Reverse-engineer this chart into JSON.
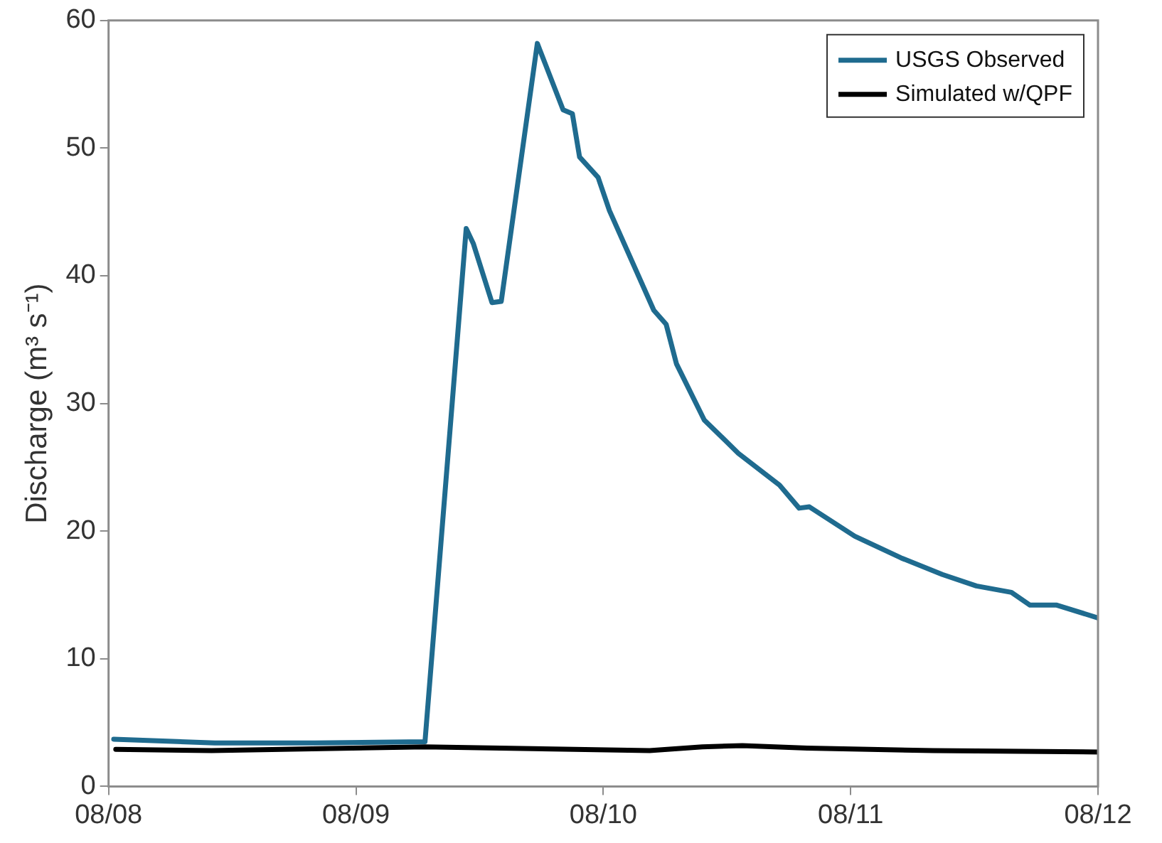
{
  "chart_data": {
    "type": "line",
    "ylabel": "Discharge (m³ s⁻¹)",
    "xlim": [
      "--08-08",
      "--08-12"
    ],
    "xticks": [
      {
        "value": "--08-08",
        "label": "08/08"
      },
      {
        "value": "--08-09",
        "label": "08/09"
      },
      {
        "value": "--08-10",
        "label": "08/10"
      },
      {
        "value": "--08-11",
        "label": "08/11"
      },
      {
        "value": "--08-12",
        "label": "08/12"
      }
    ],
    "ylim": [
      0,
      60
    ],
    "yticks": [
      0,
      10,
      20,
      30,
      40,
      50,
      60
    ],
    "legend": "top right",
    "line_style": "solid",
    "series": [
      {
        "name": "USGS Observed",
        "color": "#1f6b8f",
        "x": [
          "--08-08T00:30",
          "--08-08T10:18",
          "--08-08T20:00",
          "--08-09T06:42",
          "--08-09T10:42",
          "--08-09T11:24",
          "--08-09T13:12",
          "--08-09T14:06",
          "--08-09T17:36",
          "--08-09T20:06",
          "--08-09T21:00",
          "--08-09T21:42",
          "--08-09T23:30",
          "--08-10T00:36",
          "--08-10T04:54",
          "--08-10T06:06",
          "--08-10T07:06",
          "--08-10T09:48",
          "--08-10T13:06",
          "--08-10T17:06",
          "--08-10T19:00",
          "--08-10T20:00",
          "--08-11T00:24",
          "--08-11T04:54",
          "--08-11T08:54",
          "--08-11T12:12",
          "--08-11T15:36",
          "--08-11T17:24",
          "--08-11T20:00",
          "--08-12T00:00"
        ],
        "values": [
          3.7,
          3.4,
          3.4,
          3.5,
          43.7,
          42.5,
          37.9,
          38,
          58.2,
          53,
          52.7,
          49.3,
          47.7,
          45.1,
          37.3,
          36.2,
          33.1,
          28.7,
          26.1,
          23.6,
          21.8,
          21.9,
          19.6,
          17.9,
          16.6,
          15.7,
          15.2,
          14.2,
          14.2,
          13.2
        ]
      },
      {
        "name": "Simulated w/QPF",
        "color": "#000000",
        "x": [
          "--08-08T00:42",
          "--08-08T10:00",
          "--08-09T06:42",
          "--08-10T04:30",
          "--08-10T09:36",
          "--08-10T13:30",
          "--08-10T19:48",
          "--08-11T08:00",
          "--08-12T00:00"
        ],
        "values": [
          2.9,
          2.8,
          3.1,
          2.8,
          3.1,
          3.2,
          3.0,
          2.8,
          2.7
        ]
      }
    ]
  }
}
